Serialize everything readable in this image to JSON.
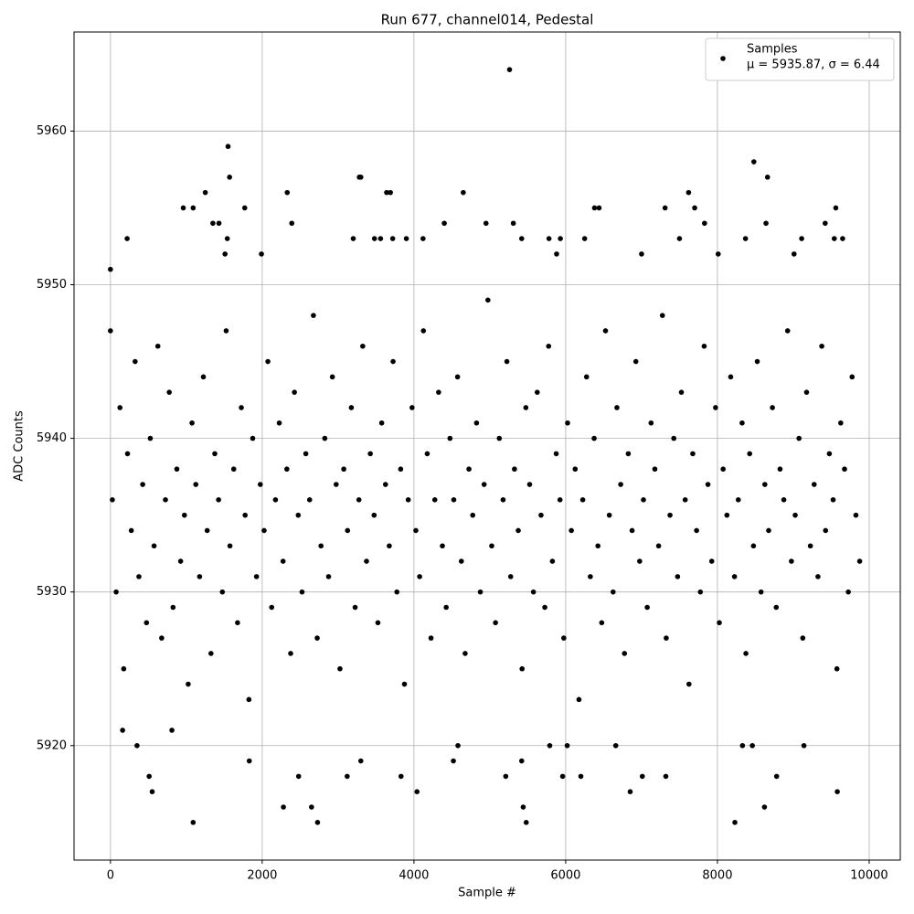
{
  "chart_data": {
    "type": "scatter",
    "title": "Run 677, channel014, Pedestal",
    "x_label": "Sample #",
    "y_label": "ADC Counts",
    "xlim": [
      -480,
      10410
    ],
    "ylim": [
      5912.55,
      5966.45
    ],
    "xticks": [
      0,
      2000,
      4000,
      6000,
      8000,
      10000
    ],
    "yticks": [
      5920,
      5930,
      5940,
      5950,
      5960
    ],
    "grid": true,
    "legend": "upper right",
    "legend_note": "μ = 5935.87, σ = 6.44",
    "series": [
      {
        "name": "Samples",
        "color": "#000000",
        "x": [
          0,
          0,
          1090,
          2730,
          5480,
          8230,
          2280,
          2650,
          5440,
          8620,
          550,
          4040,
          6850,
          9580,
          5260,
          1550,
          8480,
          1570,
          3280,
          3300,
          8660,
          2330,
          3640,
          3690,
          4650,
          7620,
          1250,
          960,
          1090,
          1770,
          6380,
          6440,
          7310,
          7700,
          9560,
          1350,
          1430,
          2390,
          4400,
          4950,
          5310,
          7830,
          8640,
          9420,
          220,
          1540,
          3200,
          3480,
          3560,
          3720,
          3900,
          4120,
          5420,
          5780,
          5930,
          6250,
          7500,
          8370,
          9110,
          9540,
          9650,
          1510,
          1990,
          5880,
          8010,
          9010,
          7000,
          5210,
          510,
          2480,
          3120,
          3830,
          5960,
          6200,
          7010,
          7320,
          8780,
          350,
          810,
          160,
          1830,
          4520,
          5420,
          3300,
          8460,
          9140,
          8330,
          6660,
          6020,
          5790,
          4580,
          25,
          75,
          125,
          175,
          225,
          275,
          325,
          375,
          425,
          475,
          525,
          575,
          625,
          675,
          725,
          775,
          825,
          875,
          925,
          975,
          1025,
          1075,
          1125,
          1175,
          1225,
          1275,
          1325,
          1375,
          1425,
          1475,
          1525,
          1575,
          1625,
          1675,
          1725,
          1775,
          1825,
          1875,
          1925,
          1975,
          2025,
          2075,
          2125,
          2175,
          2225,
          2275,
          2325,
          2375,
          2425,
          2475,
          2525,
          2575,
          2625,
          2675,
          2725,
          2775,
          2825,
          2875,
          2925,
          2975,
          3025,
          3075,
          3125,
          3175,
          3225,
          3275,
          3325,
          3375,
          3425,
          3475,
          3525,
          3575,
          3625,
          3675,
          3725,
          3775,
          3825,
          3875,
          3925,
          3975,
          4025,
          4075,
          4125,
          4175,
          4225,
          4275,
          4325,
          4375,
          4425,
          4475,
          4525,
          4575,
          4625,
          4675,
          4725,
          4775,
          4825,
          4875,
          4925,
          4975,
          5025,
          5075,
          5125,
          5175,
          5225,
          5275,
          5325,
          5375,
          5425,
          5475,
          5525,
          5575,
          5625,
          5675,
          5725,
          5775,
          5825,
          5875,
          5925,
          5975,
          6025,
          6075,
          6125,
          6175,
          6225,
          6275,
          6325,
          6375,
          6425,
          6475,
          6525,
          6575,
          6625,
          6675,
          6725,
          6775,
          6825,
          6875,
          6925,
          6975,
          7025,
          7075,
          7125,
          7175,
          7225,
          7275,
          7325,
          7375,
          7425,
          7475,
          7525,
          7575,
          7625,
          7675,
          7725,
          7775,
          7825,
          7875,
          7925,
          7975,
          8025,
          8075,
          8125,
          8175,
          8225,
          8275,
          8325,
          8375,
          8425,
          8475,
          8525,
          8575,
          8625,
          8675,
          8725,
          8775,
          8825,
          8875,
          8925,
          8975,
          9025,
          9075,
          9125,
          9175,
          9225,
          9275,
          9325,
          9375,
          9425,
          9475,
          9525,
          9575,
          9625,
          9675,
          9725,
          9775,
          9825,
          9875
        ],
        "values": [
          5951,
          5947,
          5915,
          5915,
          5915,
          5915,
          5916,
          5916,
          5916,
          5916,
          5917,
          5917,
          5917,
          5917,
          5964,
          5959,
          5958,
          5957,
          5957,
          5957,
          5957,
          5956,
          5956,
          5956,
          5956,
          5956,
          5956,
          5955,
          5955,
          5955,
          5955,
          5955,
          5955,
          5955,
          5955,
          5954,
          5954,
          5954,
          5954,
          5954,
          5954,
          5954,
          5954,
          5954,
          5953,
          5953,
          5953,
          5953,
          5953,
          5953,
          5953,
          5953,
          5953,
          5953,
          5953,
          5953,
          5953,
          5953,
          5953,
          5953,
          5953,
          5952,
          5952,
          5952,
          5952,
          5952,
          5952,
          5918,
          5918,
          5918,
          5918,
          5918,
          5918,
          5918,
          5918,
          5918,
          5918,
          5920,
          5921,
          5921,
          5919,
          5919,
          5919,
          5919,
          5920,
          5920,
          5920,
          5920,
          5920,
          5920,
          5920,
          5936,
          5930,
          5942,
          5925,
          5939,
          5934,
          5945,
          5931,
          5937,
          5928,
          5940,
          5933,
          5946,
          5927,
          5936,
          5943,
          5929,
          5938,
          5932,
          5935,
          5924,
          5941,
          5937,
          5931,
          5944,
          5934,
          5926,
          5939,
          5936,
          5930,
          5947,
          5933,
          5938,
          5928,
          5942,
          5935,
          5923,
          5940,
          5931,
          5937,
          5934,
          5945,
          5929,
          5936,
          5941,
          5932,
          5938,
          5926,
          5943,
          5935,
          5930,
          5939,
          5936,
          5948,
          5927,
          5933,
          5940,
          5931,
          5944,
          5937,
          5925,
          5938,
          5934,
          5942,
          5929,
          5936,
          5946,
          5932,
          5939,
          5935,
          5928,
          5941,
          5937,
          5933,
          5945,
          5930,
          5938,
          5924,
          5936,
          5942,
          5934,
          5931,
          5947,
          5939,
          5927,
          5936,
          5943,
          5933,
          5929,
          5940,
          5936,
          5944,
          5932,
          5926,
          5938,
          5935,
          5941,
          5930,
          5937,
          5949,
          5933,
          5928,
          5940,
          5936,
          5945,
          5931,
          5938,
          5934,
          5925,
          5942,
          5937,
          5930,
          5943,
          5935,
          5929,
          5946,
          5932,
          5939,
          5936,
          5927,
          5941,
          5934,
          5938,
          5923,
          5936,
          5944,
          5931,
          5940,
          5933,
          5928,
          5947,
          5935,
          5930,
          5942,
          5937,
          5926,
          5939,
          5934,
          5945,
          5932,
          5936,
          5929,
          5941,
          5938,
          5933,
          5948,
          5927,
          5935,
          5940,
          5931,
          5943,
          5936,
          5924,
          5939,
          5934,
          5930,
          5946,
          5937,
          5932,
          5942,
          5928,
          5938,
          5935,
          5944,
          5931,
          5936,
          5941,
          5926,
          5939,
          5933,
          5945,
          5930,
          5937,
          5934,
          5942,
          5929,
          5938,
          5936,
          5947,
          5932,
          5935,
          5940,
          5927,
          5943,
          5933,
          5937,
          5931,
          5946,
          5934,
          5939,
          5936,
          5925,
          5941,
          5938,
          5930,
          5944,
          5935,
          5932
        ]
      }
    ]
  }
}
